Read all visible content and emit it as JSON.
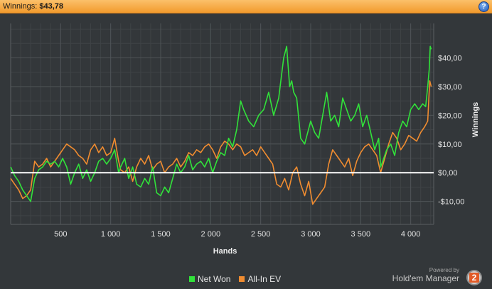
{
  "header": {
    "label": "Winnings:",
    "value": "$43,78",
    "help_label": "?"
  },
  "chart_data": {
    "type": "line",
    "xlabel": "Hands",
    "ylabel": "Winnings",
    "xlim": [
      0,
      4230
    ],
    "ylim": [
      -18,
      52
    ],
    "x_ticks": [
      {
        "v": 500,
        "label": "500"
      },
      {
        "v": 1000,
        "label": "1 000"
      },
      {
        "v": 1500,
        "label": "1 500"
      },
      {
        "v": 2000,
        "label": "2 000"
      },
      {
        "v": 2500,
        "label": "2 500"
      },
      {
        "v": 3000,
        "label": "3 000"
      },
      {
        "v": 3500,
        "label": "3 500"
      },
      {
        "v": 4000,
        "label": "4 000"
      }
    ],
    "y_ticks": [
      {
        "v": 40,
        "label": "$40,00"
      },
      {
        "v": 30,
        "label": "$30,00"
      },
      {
        "v": 20,
        "label": "$20,00"
      },
      {
        "v": 10,
        "label": "$10,00"
      },
      {
        "v": 0,
        "label": "$0,00"
      },
      {
        "v": -10,
        "label": "-$10,00"
      }
    ],
    "grid": true,
    "legend_position": "bottom-center",
    "series": [
      {
        "name": "Net Won",
        "color": "#31e23a",
        "x": [
          0,
          40,
          80,
          120,
          160,
          200,
          240,
          280,
          320,
          360,
          400,
          440,
          480,
          520,
          560,
          600,
          640,
          680,
          720,
          760,
          800,
          840,
          880,
          920,
          960,
          1000,
          1040,
          1080,
          1100,
          1140,
          1180,
          1220,
          1260,
          1300,
          1340,
          1380,
          1420,
          1460,
          1500,
          1540,
          1580,
          1620,
          1660,
          1700,
          1740,
          1780,
          1820,
          1860,
          1900,
          1940,
          1980,
          2020,
          2060,
          2100,
          2140,
          2180,
          2220,
          2260,
          2300,
          2330,
          2380,
          2430,
          2480,
          2530,
          2580,
          2630,
          2680,
          2730,
          2760,
          2790,
          2810,
          2830,
          2860,
          2900,
          2940,
          2970,
          3000,
          3040,
          3080,
          3120,
          3160,
          3200,
          3240,
          3280,
          3320,
          3360,
          3400,
          3440,
          3480,
          3520,
          3560,
          3600,
          3640,
          3680,
          3700,
          3720,
          3760,
          3800,
          3840,
          3880,
          3920,
          3960,
          4000,
          4040,
          4080,
          4120,
          4150,
          4170,
          4185,
          4195,
          4205
        ],
        "y": [
          2,
          -1,
          -3,
          -6,
          -8,
          -10,
          -2,
          1,
          2,
          4,
          3,
          4,
          2,
          5,
          2,
          -4,
          0,
          3,
          -2,
          1,
          -3,
          0,
          4,
          5,
          3,
          5,
          8,
          0,
          2,
          5,
          -2,
          2,
          -4,
          -5,
          -2,
          -4,
          2,
          -7,
          -8,
          -5,
          -7,
          -2,
          3,
          0,
          2,
          6,
          1,
          3,
          4,
          2,
          5,
          0,
          4,
          7,
          6,
          12,
          9,
          15,
          25,
          22,
          18,
          16,
          20,
          22,
          28,
          20,
          26,
          40,
          44,
          30,
          32,
          28,
          26,
          12,
          10,
          14,
          18,
          14,
          12,
          20,
          28,
          18,
          20,
          16,
          26,
          22,
          18,
          20,
          24,
          16,
          20,
          14,
          8,
          12,
          2,
          4,
          8,
          10,
          6,
          14,
          18,
          16,
          22,
          24,
          22,
          24,
          23,
          30,
          36,
          44,
          43
        ]
      },
      {
        "name": "All-In EV",
        "color": "#f08c30",
        "x": [
          0,
          40,
          80,
          120,
          160,
          200,
          240,
          280,
          320,
          360,
          400,
          440,
          480,
          520,
          560,
          600,
          640,
          680,
          720,
          760,
          800,
          840,
          880,
          920,
          960,
          1000,
          1040,
          1080,
          1100,
          1140,
          1180,
          1220,
          1260,
          1300,
          1340,
          1380,
          1420,
          1460,
          1500,
          1540,
          1580,
          1620,
          1660,
          1700,
          1740,
          1780,
          1820,
          1860,
          1900,
          1940,
          1980,
          2020,
          2060,
          2100,
          2140,
          2180,
          2220,
          2260,
          2300,
          2340,
          2380,
          2420,
          2460,
          2500,
          2540,
          2580,
          2620,
          2660,
          2700,
          2740,
          2780,
          2820,
          2860,
          2900,
          2940,
          2980,
          3020,
          3060,
          3100,
          3140,
          3180,
          3220,
          3260,
          3300,
          3340,
          3380,
          3420,
          3460,
          3500,
          3540,
          3580,
          3620,
          3660,
          3700,
          3740,
          3780,
          3820,
          3860,
          3900,
          3940,
          3980,
          4020,
          4060,
          4100,
          4140,
          4170,
          4190,
          4205
        ],
        "y": [
          -2,
          -4,
          -6,
          -9,
          -8,
          -6,
          4,
          2,
          3,
          5,
          2,
          4,
          6,
          8,
          10,
          9,
          8,
          6,
          5,
          3,
          8,
          10,
          7,
          9,
          6,
          7,
          12,
          4,
          1,
          0,
          2,
          -3,
          2,
          5,
          3,
          6,
          1,
          3,
          4,
          0,
          2,
          3,
          5,
          2,
          4,
          7,
          6,
          8,
          7,
          9,
          10,
          8,
          5,
          9,
          11,
          10,
          8,
          10,
          9,
          6,
          7,
          8,
          6,
          9,
          7,
          5,
          3,
          -4,
          -5,
          -2,
          -6,
          0,
          2,
          -4,
          -8,
          -3,
          -11,
          -9,
          -7,
          -5,
          3,
          8,
          6,
          4,
          2,
          5,
          -1,
          4,
          7,
          9,
          10,
          8,
          6,
          0,
          5,
          10,
          14,
          12,
          8,
          10,
          13,
          12,
          11,
          14,
          16,
          18,
          32,
          30
        ]
      }
    ]
  }
}
